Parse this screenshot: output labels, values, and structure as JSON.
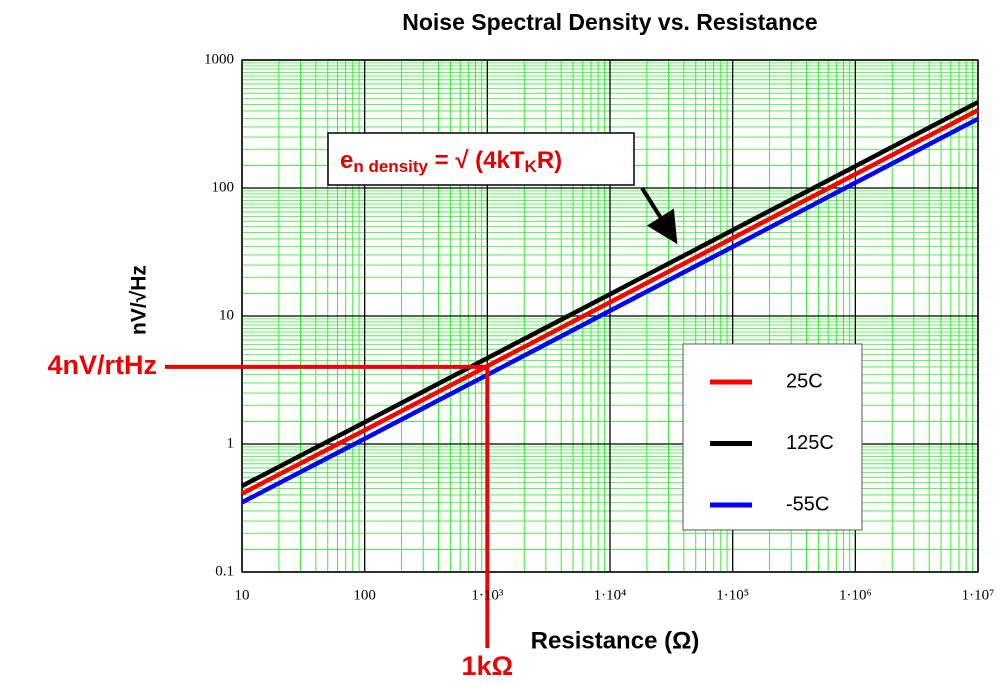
{
  "chart_data": {
    "type": "line",
    "title": "Noise Spectral Density vs. Resistance",
    "x_label": "Resistance (Ω)",
    "y_label": "nV/√Hz",
    "x": [
      10,
      100,
      1000,
      10000,
      100000,
      1000000,
      10000000
    ],
    "series": [
      {
        "name": "25C",
        "color": "#ff0000",
        "values": [
          0.41,
          1.28,
          4.06,
          12.8,
          40.6,
          128,
          406
        ]
      },
      {
        "name": "125C",
        "color": "#000000",
        "values": [
          0.47,
          1.48,
          4.69,
          14.8,
          46.9,
          148,
          469
        ]
      },
      {
        "name": "-55C",
        "color": "#0000ff",
        "values": [
          0.35,
          1.1,
          3.47,
          11,
          34.7,
          110,
          347
        ]
      }
    ],
    "xlim": [
      10,
      10000000
    ],
    "ylim": [
      0.1,
      1000
    ],
    "xticks": [
      10,
      100,
      {
        "value": 1000,
        "label": "1·10³"
      },
      {
        "value": 10000,
        "label": "1·10⁴"
      },
      {
        "value": 100000,
        "label": "1·10⁵"
      },
      {
        "value": 1000000,
        "label": "1·10⁶"
      },
      {
        "value": 10000000,
        "label": "1·10⁷"
      }
    ],
    "yticks": [
      0.1,
      1,
      10,
      100,
      1000
    ],
    "x_log": true,
    "y_log": true,
    "grid": true,
    "grid_color": "#33ee33",
    "legend": "right",
    "formula": [
      "e",
      "n density",
      " = √ (4kT",
      "K",
      "R)"
    ],
    "marker": {
      "x": 1000,
      "y": 4,
      "x_text": "1kΩ",
      "y_text": "4nV/rtHz",
      "color": "#ee0000"
    }
  }
}
